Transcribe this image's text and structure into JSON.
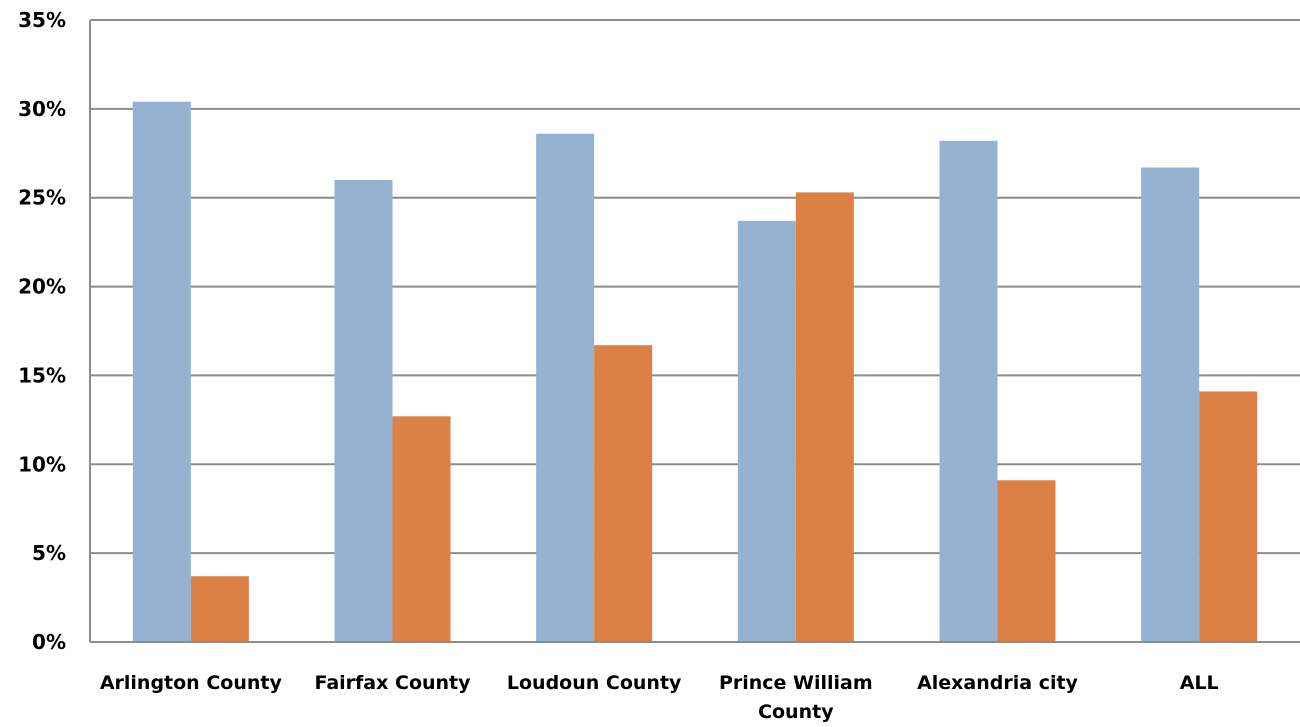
{
  "chart_data": {
    "type": "bar",
    "categories": [
      [
        "Arlington County"
      ],
      [
        "Fairfax County"
      ],
      [
        "Loudoun County"
      ],
      [
        "Prince William",
        "County"
      ],
      [
        "Alexandria city"
      ],
      [
        "ALL"
      ]
    ],
    "series": [
      {
        "color": "#95b3d0",
        "values": [
          30.4,
          26.0,
          28.6,
          23.7,
          28.2,
          26.7
        ]
      },
      {
        "color": "#dd8046",
        "values": [
          3.7,
          12.7,
          16.7,
          25.3,
          9.1,
          14.1
        ]
      }
    ],
    "y_ticks": [
      "0%",
      "5%",
      "10%",
      "15%",
      "20%",
      "25%",
      "30%",
      "35%"
    ],
    "ylim": [
      0,
      35
    ],
    "grid": true,
    "legend": "none",
    "title": "",
    "xlabel": "",
    "ylabel": ""
  }
}
